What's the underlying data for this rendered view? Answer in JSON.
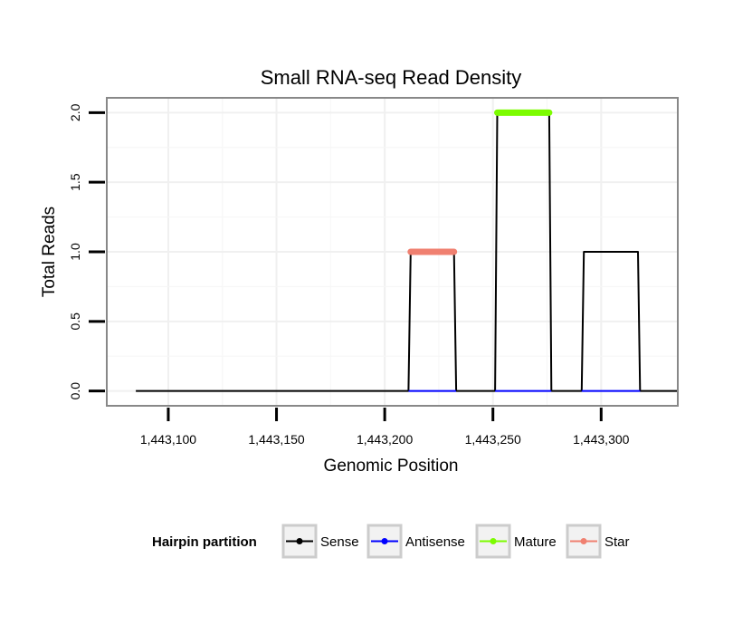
{
  "chart_data": {
    "type": "line",
    "title": "Small RNA-seq Read Density",
    "xlabel": "Genomic Position",
    "ylabel": "Total Reads",
    "xlim": [
      1443072,
      1443335
    ],
    "ylim": [
      -0.1,
      2.1
    ],
    "x_ticks": [
      1443100,
      1443150,
      1443200,
      1443250,
      1443300
    ],
    "x_tick_labels": [
      "1,443,100",
      "1,443,150",
      "1,443,200",
      "1,443,250",
      "1,443,300"
    ],
    "y_ticks": [
      0,
      0.5,
      1,
      1.5,
      2
    ],
    "y_tick_labels": [
      "0.0",
      "0.5",
      "1.0",
      "1.5",
      "2.0"
    ],
    "grid": true,
    "legend": {
      "title": "Hairpin partition",
      "position": "bottom"
    },
    "series": [
      {
        "name": "Sense",
        "color": "#000000",
        "points": [
          [
            1443085,
            0
          ],
          [
            1443211,
            0
          ],
          [
            1443212,
            1
          ],
          [
            1443232,
            1
          ],
          [
            1443233,
            0
          ],
          [
            1443251,
            0
          ],
          [
            1443252,
            2
          ],
          [
            1443276,
            2
          ],
          [
            1443277,
            0
          ],
          [
            1443291,
            0
          ],
          [
            1443292,
            1
          ],
          [
            1443317,
            1
          ],
          [
            1443318,
            0
          ],
          [
            1443335,
            0
          ]
        ]
      },
      {
        "name": "Antisense",
        "color": "#0000ff",
        "points": [
          [
            1443211,
            0
          ],
          [
            1443233,
            0
          ],
          [
            1443251,
            0
          ],
          [
            1443277,
            0
          ],
          [
            1443291,
            0
          ],
          [
            1443318,
            0
          ]
        ]
      },
      {
        "name": "Mature",
        "color": "#7cfc00",
        "points": [
          [
            1443252,
            2
          ],
          [
            1443276,
            2
          ]
        ]
      },
      {
        "name": "Star",
        "color": "#f08070",
        "points": [
          [
            1443212,
            1
          ],
          [
            1443232,
            1
          ]
        ]
      }
    ]
  }
}
